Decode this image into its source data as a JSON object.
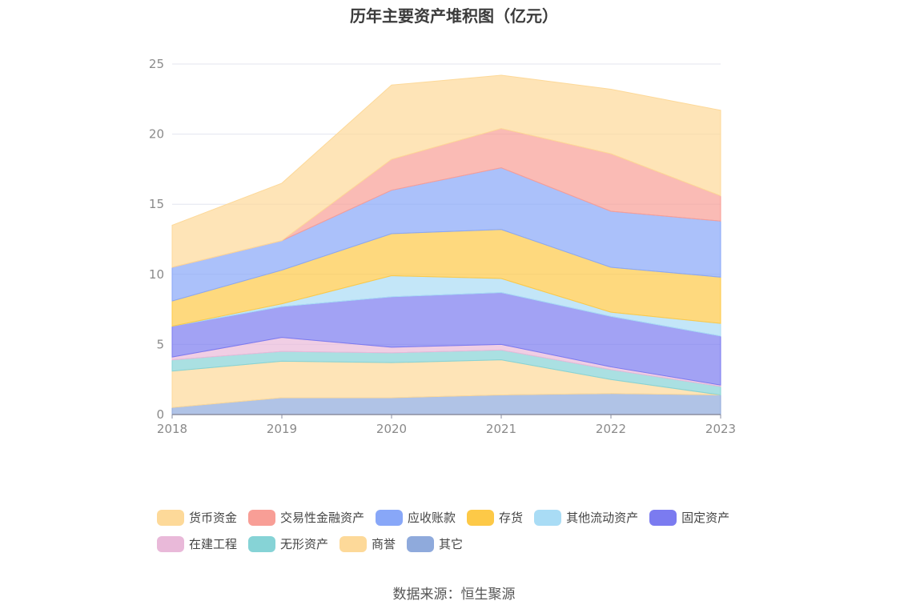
{
  "chart_data": {
    "type": "area",
    "stacked": true,
    "title": "历年主要资产堆积图（亿元）",
    "x": [
      "2018",
      "2019",
      "2020",
      "2021",
      "2022",
      "2023"
    ],
    "ylim": [
      0,
      25
    ],
    "yticks": [
      "0",
      "5",
      "10",
      "15",
      "20",
      "25"
    ],
    "grid": true,
    "legend_position": "bottom",
    "series": [
      {
        "name": "其它",
        "color": "#8faadc",
        "values": [
          0.5,
          1.2,
          1.2,
          1.4,
          1.5,
          1.4
        ]
      },
      {
        "name": "商誉",
        "color": "#fdd999",
        "values": [
          2.6,
          2.6,
          2.5,
          2.5,
          1.0,
          0.0
        ]
      },
      {
        "name": "无形资产",
        "color": "#86d3d6",
        "values": [
          0.8,
          0.7,
          0.7,
          0.7,
          0.7,
          0.6
        ]
      },
      {
        "name": "在建工程",
        "color": "#e9b9d9",
        "values": [
          0.2,
          1.0,
          0.4,
          0.4,
          0.2,
          0.1
        ]
      },
      {
        "name": "固定资产",
        "color": "#7b7bf0",
        "values": [
          2.2,
          2.2,
          3.6,
          3.7,
          3.6,
          3.5
        ]
      },
      {
        "name": "其他流动资产",
        "color": "#a9dcf5",
        "values": [
          0.0,
          0.2,
          1.5,
          1.0,
          0.3,
          0.9
        ]
      },
      {
        "name": "存货",
        "color": "#fdc947",
        "values": [
          1.8,
          2.4,
          3.0,
          3.5,
          3.2,
          3.3
        ]
      },
      {
        "name": "应收账款",
        "color": "#88a7f8",
        "values": [
          2.4,
          2.1,
          3.1,
          4.4,
          4.0,
          4.0
        ]
      },
      {
        "name": "交易性金融资产",
        "color": "#f89e96",
        "values": [
          0.0,
          0.0,
          2.2,
          2.8,
          4.1,
          1.8
        ]
      },
      {
        "name": "货币资金",
        "color": "#fdd999",
        "values": [
          3.0,
          4.1,
          5.3,
          3.8,
          4.6,
          6.1
        ]
      }
    ]
  },
  "legend": {
    "row1": [
      {
        "label": "货币资金",
        "color": "#fdd999"
      },
      {
        "label": "交易性金融资产",
        "color": "#f89e96"
      },
      {
        "label": "应收账款",
        "color": "#88a7f8"
      },
      {
        "label": "存货",
        "color": "#fdc947"
      },
      {
        "label": "其他流动资产",
        "color": "#a9dcf5"
      },
      {
        "label": "固定资产",
        "color": "#7b7bf0"
      }
    ],
    "row2": [
      {
        "label": "在建工程",
        "color": "#e9b9d9"
      },
      {
        "label": "无形资产",
        "color": "#86d3d6"
      },
      {
        "label": "商誉",
        "color": "#fdd999"
      },
      {
        "label": "其它",
        "color": "#8faadc"
      }
    ]
  },
  "source": "数据来源：恒生聚源"
}
